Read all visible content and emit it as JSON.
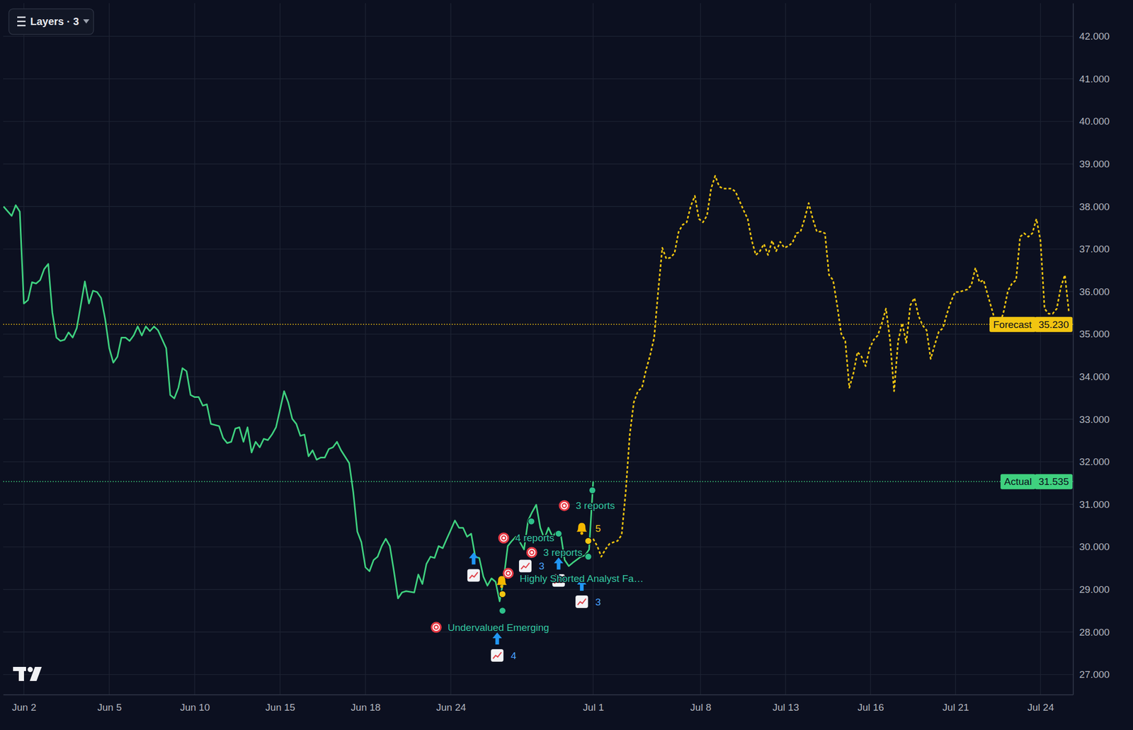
{
  "chart_data": {
    "type": "line",
    "layers_button": "Layers · 3",
    "xlim": [
      -5.1,
      258
    ],
    "xticks": [
      {
        "value": 0,
        "label": "Jun 2"
      },
      {
        "value": 21,
        "label": "Jun 5"
      },
      {
        "value": 42,
        "label": "Jun 10"
      },
      {
        "value": 63,
        "label": "Jun 15"
      },
      {
        "value": 84,
        "label": "Jun 18"
      },
      {
        "value": 105,
        "label": "Jun 24"
      },
      {
        "value": 140,
        "label": "Jul 1"
      },
      {
        "value": 166.4,
        "label": "Jul 8"
      },
      {
        "value": 187.3,
        "label": "Jul 13"
      },
      {
        "value": 208.2,
        "label": "Jul 16"
      },
      {
        "value": 229.1,
        "label": "Jul 21"
      },
      {
        "value": 250,
        "label": "Jul 24"
      }
    ],
    "ylim": [
      26.53,
      42.78
    ],
    "yticks": [
      {
        "value": 27,
        "label": "27.000"
      },
      {
        "value": 28,
        "label": "28.000"
      },
      {
        "value": 29,
        "label": "29.000"
      },
      {
        "value": 30,
        "label": "30.000"
      },
      {
        "value": 31,
        "label": "31.000"
      },
      {
        "value": 32,
        "label": "32.000"
      },
      {
        "value": 33,
        "label": "33.000"
      },
      {
        "value": 34,
        "label": "34.000"
      },
      {
        "value": 35,
        "label": "35.000"
      },
      {
        "value": 36,
        "label": "36.000"
      },
      {
        "value": 37,
        "label": "37.000"
      },
      {
        "value": 38,
        "label": "38.000"
      },
      {
        "value": 39,
        "label": "39.000"
      },
      {
        "value": 40,
        "label": "40.000"
      },
      {
        "value": 41,
        "label": "41.000"
      },
      {
        "value": 42,
        "label": "42.000"
      }
    ],
    "grid": true,
    "series": [
      {
        "name": "Actual",
        "color": "#3fd17f",
        "line_style": "solid",
        "x": [
          -5,
          -3,
          -2,
          -1,
          0,
          1,
          2,
          3,
          4,
          5,
          6,
          7,
          8,
          9,
          10,
          11,
          12,
          13,
          14,
          15,
          16,
          17,
          18,
          19,
          20,
          21,
          22,
          23,
          24,
          25,
          26,
          27,
          28,
          29,
          30,
          31,
          32,
          33,
          35,
          36,
          37,
          38,
          39,
          40,
          41,
          42,
          43,
          44,
          45,
          46,
          48,
          49,
          50,
          51,
          52,
          53,
          54,
          55,
          56,
          57,
          58,
          59,
          60,
          61,
          62,
          63,
          64,
          65,
          66,
          67,
          68,
          69,
          70,
          71,
          72,
          73,
          74,
          75,
          76,
          77,
          78,
          80,
          81,
          82,
          83,
          84,
          85,
          86,
          87,
          88,
          89,
          90,
          91,
          92,
          93,
          94,
          96,
          97,
          98,
          99,
          100,
          101,
          102,
          103,
          104,
          105,
          106,
          107,
          108,
          109,
          110,
          111,
          112,
          113,
          114,
          115,
          116,
          117,
          118,
          119,
          120,
          121,
          122,
          123,
          124,
          125,
          126,
          127,
          128,
          129,
          130,
          131,
          132,
          133,
          134,
          135,
          137,
          138,
          139,
          140
        ],
        "values": [
          38.0,
          37.78,
          38.03,
          37.88,
          35.72,
          35.8,
          36.22,
          36.19,
          36.27,
          36.53,
          36.65,
          35.51,
          34.92,
          34.84,
          34.87,
          35.04,
          34.92,
          35.14,
          35.68,
          36.24,
          35.72,
          36.02,
          35.99,
          35.85,
          35.35,
          34.67,
          34.33,
          34.47,
          34.92,
          34.92,
          34.84,
          34.97,
          35.18,
          34.97,
          35.18,
          35.07,
          35.18,
          35.09,
          34.67,
          33.57,
          33.49,
          33.74,
          34.2,
          34.13,
          33.57,
          33.52,
          33.52,
          33.32,
          33.35,
          32.89,
          32.84,
          32.56,
          32.44,
          32.47,
          32.78,
          32.81,
          32.47,
          32.81,
          32.22,
          32.47,
          32.34,
          32.54,
          32.51,
          32.64,
          32.81,
          33.23,
          33.66,
          33.4,
          33.01,
          32.89,
          32.61,
          32.64,
          32.13,
          32.27,
          32.05,
          32.1,
          32.1,
          32.3,
          32.34,
          32.47,
          32.27,
          31.97,
          31.29,
          30.36,
          30.11,
          29.52,
          29.43,
          29.69,
          29.77,
          30.02,
          30.19,
          30.02,
          29.43,
          28.79,
          28.93,
          28.96,
          28.93,
          29.35,
          29.13,
          29.6,
          29.77,
          29.74,
          30.02,
          29.97,
          30.19,
          30.4,
          30.62,
          30.45,
          30.45,
          30.24,
          30.31,
          29.77,
          29.74,
          29.3,
          29.09,
          29.26,
          29.18,
          28.72,
          29.26,
          30.02,
          30.14,
          30.24,
          30.11,
          29.94,
          30.62,
          30.82,
          30.99,
          30.45,
          30.19,
          30.45,
          30.24,
          30.36,
          30.31,
          29.69,
          29.55,
          29.63,
          29.77,
          29.8,
          29.94,
          31.535
        ],
        "price_line": {
          "value": 31.535,
          "label": "31.535"
        }
      },
      {
        "name": "Forecast",
        "color": "#f2c511",
        "line_style": "dotted",
        "x": [
          140,
          141,
          142,
          143,
          144,
          145,
          146,
          147,
          148,
          149,
          150,
          151,
          152,
          153,
          154,
          155,
          156,
          157,
          158,
          159,
          160,
          161,
          162,
          163,
          164,
          165,
          166,
          167,
          168,
          169,
          170,
          171,
          172,
          173,
          174,
          175,
          176,
          177,
          178,
          179,
          180,
          181,
          182,
          183,
          184,
          185,
          186,
          187,
          188,
          189,
          190,
          191,
          192,
          193,
          194,
          195,
          196,
          197,
          198,
          199,
          200,
          201,
          202,
          203,
          204,
          205,
          206,
          207,
          208,
          209,
          210,
          211,
          212,
          213,
          214,
          215,
          216,
          217,
          218,
          219,
          220,
          221,
          222,
          223,
          224,
          225,
          226,
          227,
          228,
          229,
          230,
          231,
          232,
          233,
          234,
          235,
          236,
          237,
          238,
          239,
          240,
          241,
          242,
          243,
          244,
          245,
          246,
          247,
          248,
          249,
          250,
          251,
          252,
          253,
          254,
          255,
          256,
          257
        ],
        "values": [
          30.19,
          30.02,
          29.77,
          29.94,
          30.07,
          30.11,
          30.14,
          30.28,
          31.29,
          32.64,
          33.4,
          33.66,
          33.74,
          34.16,
          34.5,
          34.92,
          36.02,
          37.03,
          36.77,
          36.8,
          36.9,
          37.4,
          37.57,
          37.63,
          38.01,
          38.25,
          37.71,
          37.63,
          37.79,
          38.42,
          38.72,
          38.47,
          38.42,
          38.42,
          38.42,
          38.35,
          38.13,
          37.91,
          37.71,
          37.2,
          36.86,
          36.95,
          37.12,
          36.86,
          37.2,
          36.95,
          37.17,
          37.03,
          37.07,
          37.15,
          37.37,
          37.41,
          37.71,
          38.08,
          37.71,
          37.41,
          37.41,
          37.37,
          36.39,
          36.27,
          35.68,
          35.01,
          34.84,
          33.74,
          34.08,
          34.58,
          34.47,
          34.25,
          34.67,
          34.87,
          34.97,
          35.26,
          35.6,
          34.87,
          33.66,
          34.84,
          35.26,
          34.8,
          35.68,
          35.85,
          35.43,
          35.21,
          35.09,
          34.42,
          34.75,
          35.06,
          35.14,
          35.48,
          35.77,
          35.99,
          35.99,
          36.02,
          36.05,
          36.15,
          36.56,
          36.22,
          36.27,
          35.93,
          35.6,
          35.26,
          35.21,
          35.55,
          36.02,
          36.19,
          36.27,
          37.29,
          37.37,
          37.29,
          37.37,
          37.71,
          37.2,
          35.6,
          35.48,
          35.48,
          35.6,
          36.1,
          36.39,
          35.51
        ],
        "price_line": {
          "value": 35.23,
          "label": "35.230"
        }
      }
    ],
    "annotations": [
      {
        "text": "Undervalued Emerging",
        "x": 101.4,
        "y": 28.11
      },
      {
        "text": "4 reports",
        "x": 118.0,
        "y": 30.21
      },
      {
        "text": "3 reports",
        "x": 124.9,
        "y": 29.87
      },
      {
        "text": "Highly Shorted Analyst Fa…",
        "x": 119.1,
        "y": 29.38
      },
      {
        "text": "3 reports",
        "x": 132.9,
        "y": 30.97
      }
    ],
    "markers": [
      {
        "kind": "chart-arrow",
        "x": 110.6,
        "y": 29.33
      },
      {
        "kind": "chart-arrow",
        "x": 116.4,
        "y": 27.45,
        "count": 4
      },
      {
        "kind": "chart",
        "x": 123.3,
        "y": 29.55,
        "count": 3
      },
      {
        "kind": "chart-arrow",
        "x": 131.5,
        "y": 29.21
      },
      {
        "kind": "chart-arrow",
        "x": 137.2,
        "y": 28.71,
        "count": 3
      },
      {
        "kind": "bell",
        "x": 117.5,
        "y": 29.18
      },
      {
        "kind": "bell",
        "x": 137.2,
        "y": 30.43,
        "count": 5
      },
      {
        "kind": "dot",
        "x": 117.7,
        "y": 28.5,
        "color": "#2ec08a"
      },
      {
        "kind": "dot",
        "x": 117.7,
        "y": 28.89,
        "color": "#f2c511"
      },
      {
        "kind": "dot",
        "x": 124.8,
        "y": 30.6,
        "color": "#2ec08a"
      },
      {
        "kind": "dot",
        "x": 131.5,
        "y": 30.31,
        "color": "#2ec08a"
      },
      {
        "kind": "dot",
        "x": 138.8,
        "y": 30.14,
        "color": "#f2c511"
      },
      {
        "kind": "dot",
        "x": 138.8,
        "y": 29.77,
        "color": "#2ec08a"
      },
      {
        "kind": "dot",
        "x": 139.8,
        "y": 31.33,
        "color": "#2ec08a"
      }
    ]
  }
}
